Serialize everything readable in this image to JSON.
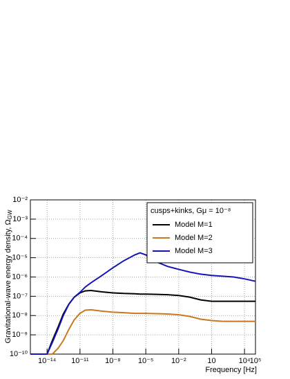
{
  "chart_data": {
    "type": "line",
    "x_label": "Frequency [Hz]",
    "y_label": "Gravitational-wave energy density, Ω",
    "y_label_sub": "GW",
    "legend_title": "cusps+kinks, Gμ = 10⁻⁸",
    "legend": "top-right",
    "grid": true,
    "xscale": "log",
    "yscale": "log",
    "xlim": [
      3e-16,
      100000.0
    ],
    "ylim": [
      1e-10,
      0.01
    ],
    "xticks": [
      {
        "value": 1e-14,
        "label": "10⁻¹⁴"
      },
      {
        "value": 1e-11,
        "label": "10⁻¹¹"
      },
      {
        "value": 1e-08,
        "label": "10⁻⁸"
      },
      {
        "value": 1e-05,
        "label": "10⁻⁵"
      },
      {
        "value": 0.01,
        "label": "10⁻²"
      },
      10,
      {
        "value": 10000.0,
        "label": "10⁴"
      },
      {
        "value": 100000.0,
        "label": "10⁵"
      }
    ],
    "yticks": [
      {
        "value": 1e-10,
        "label": "10⁻¹⁰"
      },
      {
        "value": 1e-09,
        "label": "10⁻⁹"
      },
      {
        "value": 1e-08,
        "label": "10⁻⁸"
      },
      {
        "value": 1e-07,
        "label": "10⁻⁷"
      },
      {
        "value": 1e-06,
        "label": "10⁻⁶"
      },
      {
        "value": 1e-05,
        "label": "10⁻⁵"
      },
      {
        "value": 0.0001,
        "label": "10⁻⁴"
      },
      {
        "value": 0.001,
        "label": "10⁻³"
      },
      {
        "value": 0.01,
        "label": "10⁻²"
      }
    ],
    "x": [
      3e-16,
      1e-14,
      3e-14,
      1e-13,
      3e-13,
      1e-12,
      3e-12,
      1e-11,
      3e-11,
      1e-10,
      1e-09,
      1e-08,
      1e-07,
      1e-06,
      3e-06,
      1e-05,
      0.0001,
      0.001,
      0.01,
      0.1,
      1,
      10,
      100,
      1000.0,
      10000.0,
      100000.0
    ],
    "series": [
      {
        "name": "Model M=1",
        "color": "#000000",
        "values": [
          1e-10,
          1e-10,
          5e-10,
          2.5e-09,
          1.2e-08,
          4e-08,
          9e-08,
          1.5e-07,
          1.9e-07,
          2e-07,
          1.7e-07,
          1.5e-07,
          1.4e-07,
          1.35e-07,
          1.3e-07,
          1.3e-07,
          1.25e-07,
          1.2e-07,
          1.1e-07,
          9e-08,
          6.5e-08,
          5.5e-08,
          5.5e-08,
          5.5e-08,
          5.5e-08,
          5.5e-08
        ]
      },
      {
        "name": "Model M=2",
        "color": "#c8781e",
        "values": [
          1e-10,
          1e-10,
          1e-10,
          2e-10,
          5e-10,
          2e-09,
          6e-09,
          1.3e-08,
          1.9e-08,
          2e-08,
          1.7e-08,
          1.5e-08,
          1.4e-08,
          1.3e-08,
          1.3e-08,
          1.3e-08,
          1.25e-08,
          1.2e-08,
          1.1e-08,
          9e-09,
          6.5e-09,
          5.5e-09,
          5e-09,
          5e-09,
          5e-09,
          5e-09
        ]
      },
      {
        "name": "Model M=3",
        "color": "#1414b4",
        "values": [
          1e-10,
          1e-10,
          4e-10,
          2e-09,
          1e-08,
          4e-08,
          9e-08,
          1.6e-07,
          3e-07,
          5e-07,
          1.2e-06,
          3e-06,
          7e-06,
          1.4e-05,
          1.8e-05,
          1.4e-05,
          6e-06,
          3.5e-06,
          2.5e-06,
          1.8e-06,
          1.4e-06,
          1.2e-06,
          1.1e-06,
          1e-06,
          8e-07,
          6e-07
        ]
      }
    ]
  }
}
